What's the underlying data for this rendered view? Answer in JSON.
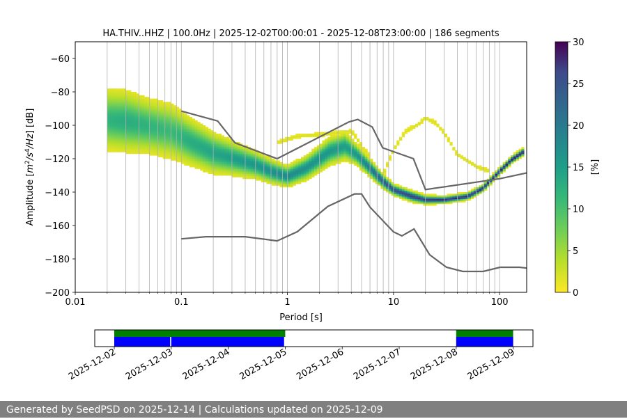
{
  "chart_data": {
    "type": "heatmap",
    "title": "HA.THIV..HHZ | 100.0Hz | 2025-12-02T00:00:01 - 2025-12-08T23:00:00 | 186 segments",
    "xlabel": "Period [s]",
    "ylabel": "Amplitude [m²/s⁴/Hz] [dB]",
    "xscale": "log",
    "xlim": [
      0.01,
      180
    ],
    "ylim": [
      -200,
      -50
    ],
    "xticks": [
      {
        "value": 0.01,
        "label": "0.01"
      },
      {
        "value": 0.1,
        "label": "0.1"
      },
      {
        "value": 1,
        "label": "1"
      },
      {
        "value": 10,
        "label": "10"
      },
      {
        "value": 100,
        "label": "100"
      }
    ],
    "yticks": [
      -200,
      -180,
      -160,
      -140,
      -120,
      -100,
      -80,
      -60
    ],
    "ytick_labels": [
      "−200",
      "−180",
      "−160",
      "−140",
      "−120",
      "−100",
      "−80",
      "−60"
    ],
    "grid": "vertical",
    "colorbar": {
      "label": "[%]",
      "min": 0,
      "max": 30,
      "ticks": [
        0,
        5,
        10,
        15,
        20,
        25,
        30
      ],
      "tick_labels": [
        "0",
        "5",
        "10",
        "15",
        "20",
        "25",
        "30"
      ],
      "colormap": "viridis_r"
    },
    "density_bands": [
      {
        "name": "main-psd",
        "periods": [
          0.02,
          0.03,
          0.05,
          0.08,
          0.12,
          0.2,
          0.3,
          0.5,
          0.7,
          1.0,
          1.5,
          2.5,
          3.5,
          4.5,
          6,
          8,
          10,
          15,
          20,
          30,
          50,
          70,
          100,
          130,
          170
        ],
        "centers": [
          -97,
          -98,
          -101,
          -104,
          -110,
          -117,
          -120,
          -124,
          -128,
          -131,
          -126,
          -116,
          -113,
          -118,
          -126,
          -134,
          -139,
          -143,
          -145,
          -145,
          -143,
          -138,
          -128,
          -121,
          -116
        ],
        "widths": [
          9,
          9,
          8,
          8,
          7,
          6,
          5,
          4,
          3.5,
          3,
          3.5,
          4,
          4,
          3,
          2.5,
          2,
          1.5,
          1.5,
          1.2,
          1,
          1,
          1,
          1,
          1,
          1
        ],
        "peak": [
          12,
          13,
          12,
          11,
          13,
          14,
          15,
          16,
          17,
          18,
          17,
          16,
          15,
          16,
          20,
          24,
          26,
          27,
          27,
          28,
          28,
          28,
          29,
          29,
          30
        ]
      },
      {
        "name": "secondary-trace",
        "periods": [
          0.8,
          1.2,
          2,
          3,
          4,
          4.5,
          5,
          6
        ],
        "centers": [
          -111,
          -107,
          -106,
          -105,
          -104,
          -108,
          -113,
          -119
        ],
        "widths": [
          0.8,
          0.8,
          0.8,
          0.8,
          0.8,
          0.8,
          0.8,
          0.8
        ],
        "peak": [
          2,
          2,
          2,
          2,
          2,
          2,
          2,
          2
        ]
      },
      {
        "name": "long-period-arc",
        "periods": [
          8,
          10,
          13,
          17,
          20,
          25,
          30,
          40,
          60,
          80
        ],
        "centers": [
          -130,
          -115,
          -104,
          -100,
          -96,
          -99,
          -105,
          -118,
          -125,
          -128
        ],
        "widths": [
          0.8,
          0.8,
          0.8,
          0.8,
          0.8,
          0.8,
          0.8,
          0.8,
          0.8,
          0.8
        ],
        "peak": [
          2,
          2,
          2,
          2,
          2,
          2,
          2,
          2,
          2,
          2
        ]
      }
    ],
    "series": [
      {
        "name": "NHNM",
        "color": "#666666",
        "x": [
          0.1,
          0.22,
          0.32,
          0.8,
          3.8,
          4.6,
          6.3,
          7.9,
          15.4,
          20,
          100,
          180
        ],
        "y": [
          -91.5,
          -97.4,
          -110.5,
          -120,
          -98,
          -96.5,
          -101,
          -113.5,
          -120,
          -138.5,
          -132,
          -128.5
        ]
      },
      {
        "name": "NLNM",
        "color": "#666666",
        "x": [
          0.1,
          0.17,
          0.4,
          0.8,
          1.24,
          2.4,
          4.3,
          5.0,
          6.0,
          10,
          12,
          15.6,
          21.9,
          31.6,
          45,
          70,
          101,
          154,
          180
        ],
        "y": [
          -168,
          -166.7,
          -166.7,
          -169.2,
          -163.7,
          -148.6,
          -141.1,
          -141.1,
          -149,
          -163.8,
          -166.2,
          -162.1,
          -177.5,
          -185,
          -187.5,
          -187.5,
          -185,
          -185,
          -185.5
        ]
      }
    ]
  },
  "availability": {
    "xlim": [
      "2025-12-02",
      "2025-12-09"
    ],
    "tick_labels": [
      "2025-12-02",
      "2025-12-03",
      "2025-12-04",
      "2025-12-05",
      "2025-12-06",
      "2025-12-07",
      "2025-12-08",
      "2025-12-09"
    ],
    "data_color": "#0000ff",
    "processed_color": "#008000",
    "data_spans": [
      [
        0.0,
        0.98
      ],
      [
        1.0,
        2.98
      ],
      [
        6.0,
        7.0
      ]
    ],
    "processed_spans": [
      [
        0.0,
        3.0
      ],
      [
        6.0,
        7.0
      ]
    ]
  },
  "footer": {
    "text": "Generated by SeedPSD on 2025-12-14 | Calculations updated on 2025-12-09"
  }
}
